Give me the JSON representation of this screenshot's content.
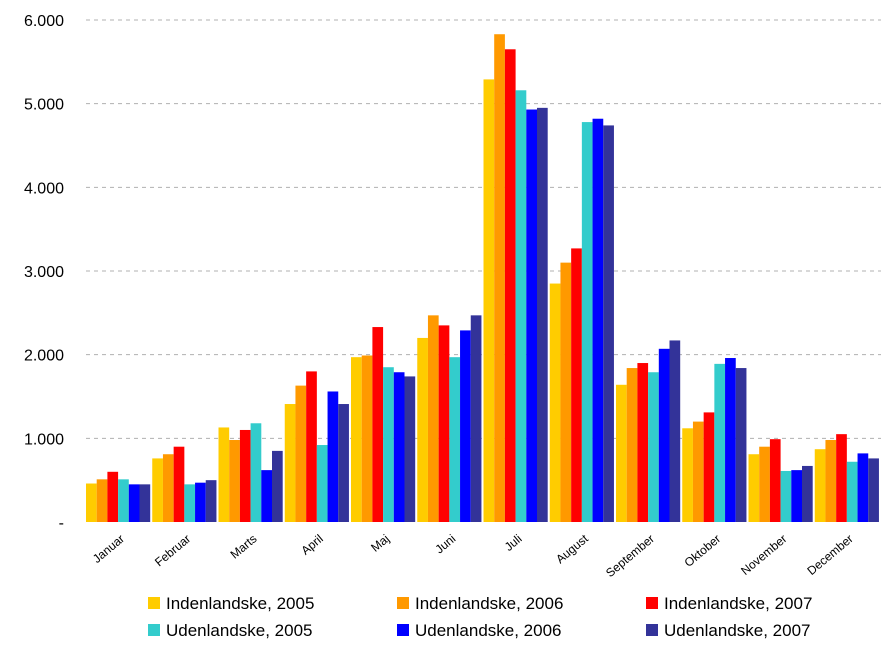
{
  "chart_data": {
    "type": "bar",
    "title": "",
    "xlabel": "",
    "ylabel": "",
    "ylim": [
      0,
      6000
    ],
    "yticks": [
      {
        "value": 0,
        "label": "-"
      },
      {
        "value": 1000,
        "label": "1.000"
      },
      {
        "value": 2000,
        "label": "2.000"
      },
      {
        "value": 3000,
        "label": "3.000"
      },
      {
        "value": 4000,
        "label": "4.000"
      },
      {
        "value": 5000,
        "label": "5.000"
      },
      {
        "value": 6000,
        "label": "6.000"
      }
    ],
    "grid": true,
    "legend_position": "bottom",
    "categories": [
      "Januar",
      "Februar",
      "Marts",
      "April",
      "Maj",
      "Juni",
      "Juli",
      "August",
      "September",
      "Oktober",
      "November",
      "December"
    ],
    "series": [
      {
        "name": "Indenlandske, 2005",
        "color": "#FFCC00",
        "values": [
          460,
          760,
          1130,
          1410,
          1970,
          2200,
          5290,
          2850,
          1640,
          1120,
          810,
          870
        ]
      },
      {
        "name": "Indenlandske, 2006",
        "color": "#FF9900",
        "values": [
          510,
          810,
          980,
          1630,
          1990,
          2470,
          5830,
          3100,
          1840,
          1200,
          900,
          980
        ]
      },
      {
        "name": "Indenlandske, 2007",
        "color": "#FF0000",
        "values": [
          600,
          900,
          1100,
          1800,
          2330,
          2350,
          5650,
          3270,
          1900,
          1310,
          990,
          1050
        ]
      },
      {
        "name": "Udenlandske, 2005",
        "color": "#33CCCC",
        "values": [
          510,
          450,
          1180,
          920,
          1850,
          1970,
          5160,
          4780,
          1790,
          1890,
          610,
          720
        ]
      },
      {
        "name": "Udenlandske, 2006",
        "color": "#0000FF",
        "values": [
          450,
          470,
          620,
          1560,
          1790,
          2290,
          4930,
          4820,
          2070,
          1960,
          620,
          820
        ]
      },
      {
        "name": "Udenlandske, 2007",
        "color": "#333399",
        "values": [
          450,
          500,
          850,
          1410,
          1740,
          2470,
          4950,
          4740,
          2170,
          1840,
          670,
          760
        ]
      }
    ]
  }
}
